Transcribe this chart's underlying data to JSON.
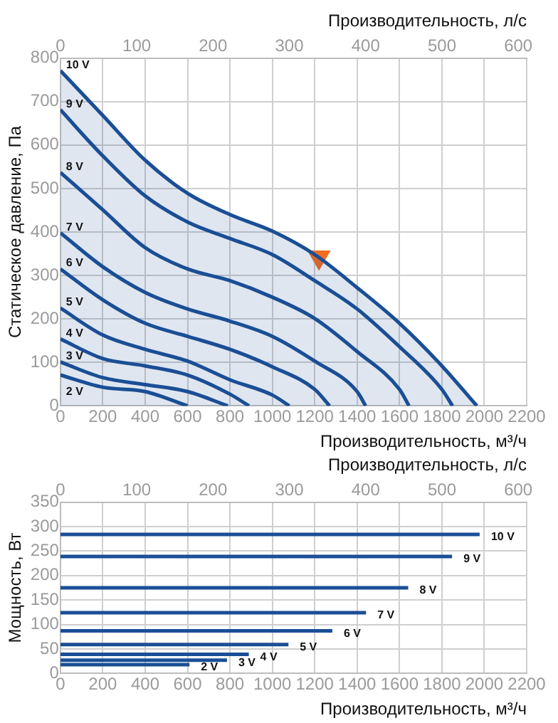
{
  "chart_data": [
    {
      "type": "line",
      "xlabel": "Производительность, м³/ч",
      "x2label": "Производительность, л/с",
      "ylabel": "Статическое давление, Па",
      "xlim": [
        0,
        2200
      ],
      "xticks": [
        0,
        200,
        400,
        600,
        800,
        1000,
        1200,
        1400,
        1600,
        1800,
        2000,
        2200
      ],
      "x2lim": [
        0,
        611
      ],
      "x2ticks": [
        0,
        100,
        200,
        300,
        400,
        500,
        600
      ],
      "ylim": [
        0,
        800
      ],
      "yticks": [
        0,
        100,
        200,
        300,
        400,
        500,
        600,
        700,
        800
      ],
      "grid": true,
      "legend": false,
      "marker": "none",
      "series": [
        {
          "name": "10 V",
          "type": "area",
          "color": "#1a4e96",
          "x": [
            0,
            200,
            400,
            600,
            800,
            1000,
            1200,
            1400,
            1600,
            1800,
            1965
          ],
          "values": [
            771,
            668,
            565,
            489,
            440,
            402,
            348,
            272,
            190,
            92,
            0
          ]
        },
        {
          "name": "9 V",
          "color": "#1a4e96",
          "x": [
            0,
            200,
            400,
            600,
            800,
            1000,
            1200,
            1400,
            1600,
            1800,
            1850
          ],
          "values": [
            681,
            575,
            483,
            423,
            385,
            348,
            288,
            223,
            136,
            38,
            0
          ]
        },
        {
          "name": "8 V",
          "color": "#1a4e96",
          "x": [
            0,
            200,
            400,
            600,
            800,
            1000,
            1200,
            1400,
            1600,
            1645
          ],
          "values": [
            537,
            451,
            364,
            315,
            288,
            250,
            201,
            125,
            38,
            0
          ]
        },
        {
          "name": "7 V",
          "color": "#1a4e96",
          "x": [
            0,
            200,
            400,
            600,
            800,
            1000,
            1200,
            1400,
            1440
          ],
          "values": [
            398,
            320,
            261,
            223,
            195,
            160,
            103,
            33,
            0
          ]
        },
        {
          "name": "6 V",
          "color": "#1a4e96",
          "x": [
            0,
            200,
            400,
            600,
            800,
            1000,
            1200,
            1270
          ],
          "values": [
            315,
            244,
            190,
            160,
            130,
            90,
            38,
            0
          ]
        },
        {
          "name": "5 V",
          "color": "#1a4e96",
          "x": [
            0,
            200,
            400,
            600,
            800,
            1000,
            1080
          ],
          "values": [
            225,
            163,
            130,
            103,
            60,
            25,
            0
          ]
        },
        {
          "name": "4 V",
          "color": "#1a4e96",
          "x": [
            0,
            200,
            400,
            600,
            800,
            890
          ],
          "values": [
            154,
            109,
            92,
            71,
            27,
            0
          ]
        },
        {
          "name": "3 V",
          "color": "#1a4e96",
          "x": [
            0,
            200,
            400,
            600,
            790
          ],
          "values": [
            101,
            65,
            49,
            33,
            0
          ]
        },
        {
          "name": "2 V",
          "color": "#1a4e96",
          "x": [
            0,
            200,
            400,
            600
          ],
          "values": [
            71,
            43,
            33,
            0
          ]
        },
        {
          "type": "scatter",
          "marker": "triangle",
          "color": "#f26c21",
          "x": [
            1220
          ],
          "values": [
            342
          ]
        }
      ]
    },
    {
      "type": "line",
      "xlabel": "Производительность, м³/ч",
      "x2label": "Производительность, л/с",
      "ylabel": "Мощность, Вт",
      "xlim": [
        0,
        2200
      ],
      "xticks": [
        0,
        200,
        400,
        600,
        800,
        1000,
        1200,
        1400,
        1600,
        1800,
        2000,
        2200
      ],
      "x2lim": [
        0,
        611
      ],
      "x2ticks": [
        0,
        100,
        200,
        300,
        400,
        500,
        600
      ],
      "ylim": [
        0,
        350
      ],
      "yticks": [
        0,
        50,
        100,
        150,
        200,
        250,
        300,
        350
      ],
      "grid": true,
      "legend": false,
      "marker": "none",
      "series": [
        {
          "name": "10 V",
          "color": "#1a4e96",
          "x": [
            0,
            1978
          ],
          "values": [
            284,
            284
          ]
        },
        {
          "name": "9 V",
          "color": "#1a4e96",
          "x": [
            0,
            1848
          ],
          "values": [
            239,
            239
          ]
        },
        {
          "name": "8 V",
          "color": "#1a4e96",
          "x": [
            0,
            1641
          ],
          "values": [
            175,
            175
          ]
        },
        {
          "name": "7 V",
          "color": "#1a4e96",
          "x": [
            0,
            1442
          ],
          "values": [
            124,
            124
          ]
        },
        {
          "name": "6 V",
          "color": "#1a4e96",
          "x": [
            0,
            1283
          ],
          "values": [
            87,
            87
          ]
        },
        {
          "name": "5 V",
          "color": "#1a4e96",
          "x": [
            0,
            1076
          ],
          "values": [
            59,
            59
          ]
        },
        {
          "name": "4 V",
          "color": "#1a4e96",
          "x": [
            0,
            889
          ],
          "values": [
            39,
            39
          ]
        },
        {
          "name": "3 V",
          "color": "#1a4e96",
          "x": [
            0,
            786
          ],
          "values": [
            27,
            27
          ]
        },
        {
          "name": "2 V",
          "color": "#1a4e96",
          "x": [
            0,
            609
          ],
          "values": [
            18,
            18
          ]
        }
      ]
    }
  ]
}
